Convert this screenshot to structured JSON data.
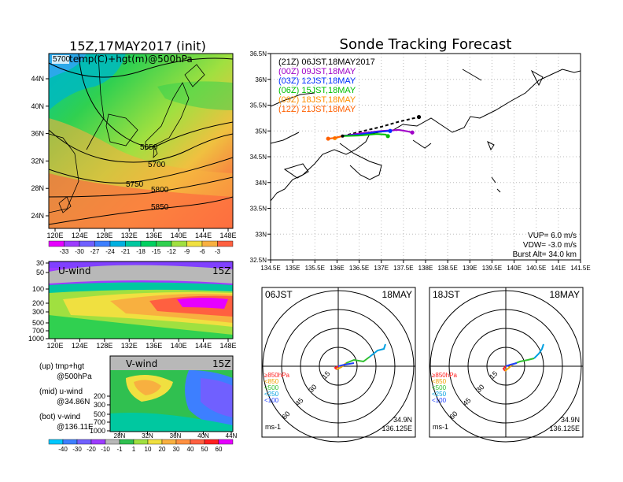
{
  "chart_data": [
    {
      "type": "heatmap",
      "title": "15Z,17MAY2017 (init)",
      "subtitle": "temp(C)+hgt(m)@500hPa",
      "corner_label": "5700",
      "x_ticks": [
        "120E",
        "124E",
        "128E",
        "132E",
        "136E",
        "140E",
        "144E",
        "148E"
      ],
      "y_ticks": [
        "44N",
        "40N",
        "36N",
        "32N",
        "28N",
        "24N"
      ],
      "contours": [
        {
          "label": "5650"
        },
        {
          "label": "5700"
        },
        {
          "label": "5750"
        },
        {
          "label": "5800"
        },
        {
          "label": "5850"
        }
      ],
      "colorbar_labels": [
        "-33",
        "-30",
        "-27",
        "-24",
        "-21",
        "-18",
        "-15",
        "-12",
        "-9",
        "-6",
        "-3"
      ],
      "colorbar_colors": [
        "#e600ff",
        "#9d3cff",
        "#7060ff",
        "#3d7fff",
        "#00b0e0",
        "#00c8a0",
        "#00d060",
        "#30d050",
        "#a0e040",
        "#f0e040",
        "#f8b040",
        "#ff6040"
      ]
    },
    {
      "type": "heatmap",
      "label": "U-wind",
      "time": "15Z",
      "x_ticks": [
        "120E",
        "124E",
        "128E",
        "132E",
        "136E",
        "140E",
        "144E",
        "148E"
      ],
      "y_ticks": [
        "30",
        "50",
        "100",
        "200",
        "300",
        "500",
        "700",
        "1000"
      ]
    },
    {
      "type": "heatmap",
      "label": "V-wind",
      "time": "15Z",
      "x_ticks": [
        "28N",
        "32N",
        "36N",
        "40N",
        "44N"
      ],
      "y_ticks": [
        "200",
        "300",
        "500",
        "700",
        "1000"
      ],
      "colorbar_labels": [
        "-40",
        "-30",
        "-20",
        "-10",
        "-1",
        "1",
        "10",
        "20",
        "30",
        "40",
        "50",
        "60"
      ]
    },
    {
      "type": "line",
      "title": "Sonde Tracking Forecast",
      "x_ticks": [
        "134.5E",
        "135E",
        "135.5E",
        "136E",
        "136.5E",
        "137E",
        "137.5E",
        "138E",
        "138.5E",
        "139E",
        "139.5E",
        "140E",
        "140.5E",
        "141E",
        "141.5E"
      ],
      "y_ticks": [
        "36.5N",
        "36N",
        "35.5N",
        "35N",
        "34.5N",
        "34N",
        "33.5N",
        "33N",
        "32.5N"
      ],
      "xlim": [
        134.5,
        141.5
      ],
      "ylim": [
        32.5,
        36.5
      ],
      "launch": {
        "lon": 136.125,
        "lat": 34.9
      },
      "series": [
        {
          "name": "(21Z)  06JST,18MAY2017",
          "color": "#000000",
          "dash": "4,3",
          "lons": [
            136.125,
            136.5,
            137.0,
            137.4,
            137.7,
            137.85
          ],
          "lats": [
            34.9,
            34.98,
            35.08,
            35.18,
            35.24,
            35.27
          ]
        },
        {
          "name": "(00Z)  09JST,18MAY",
          "color": "#a000c8",
          "dash": "",
          "lons": [
            136.125,
            136.5,
            137.0,
            137.4,
            137.6,
            137.7
          ],
          "lats": [
            34.9,
            34.95,
            35.0,
            35.02,
            34.99,
            34.97
          ]
        },
        {
          "name": "(03Z)  12JST,18MAY",
          "color": "#0030ff",
          "dash": "",
          "lons": [
            136.125,
            136.5,
            136.9,
            137.2
          ],
          "lats": [
            34.9,
            34.93,
            34.98,
            35.0
          ]
        },
        {
          "name": "(06Z)  15JST,18MAY",
          "color": "#00c000",
          "dash": "",
          "lons": [
            136.125,
            136.5,
            136.9,
            137.1,
            137.15
          ],
          "lats": [
            34.9,
            34.91,
            34.94,
            34.93,
            34.9
          ]
        },
        {
          "name": "(09Z)  18JST,18MAY",
          "color": "#ff9000",
          "dash": "",
          "lons": [
            136.125,
            136.0,
            135.95
          ],
          "lats": [
            34.9,
            34.87,
            34.86
          ]
        },
        {
          "name": "(12Z)  21JST,18MAY",
          "color": "#ff6000",
          "dash": "",
          "lons": [
            136.125,
            135.9,
            135.8
          ],
          "lats": [
            34.9,
            34.86,
            34.85
          ]
        }
      ],
      "notes": [
        "VUP=  6.0  m/s",
        "VDW=  -3.0  m/s",
        "Burst Alt=  34.0  km"
      ]
    },
    {
      "type": "scatter",
      "panel": "hodograph",
      "left_label": "06JST",
      "right_label": "18MAY",
      "ring_labels": [
        "15",
        "30",
        "45",
        "60"
      ],
      "legend": [
        "≥850hPa",
        "<850",
        "<500",
        "<250",
        "<100"
      ],
      "legend_colors": [
        "#ff2020",
        "#f0a000",
        "#30c030",
        "#00a0e0",
        "#2040ff"
      ],
      "unit": "ms-1",
      "position": [
        "34.9N",
        "136.125E"
      ]
    },
    {
      "type": "scatter",
      "panel": "hodograph",
      "left_label": "18JST",
      "right_label": "18MAY",
      "ring_labels": [
        "15",
        "30",
        "45",
        "60"
      ],
      "legend": [
        "≥850hPa",
        "<850",
        "<500",
        "<250",
        "<100"
      ],
      "legend_colors": [
        "#ff2020",
        "#f0a000",
        "#30c030",
        "#00a0e0",
        "#2040ff"
      ],
      "unit": "ms-1",
      "position": [
        "34.9N",
        "136.125E"
      ]
    }
  ],
  "captions": {
    "up": "(up) tmp+hgt",
    "up2": "@500hPa",
    "mid": "(mid) u-wind",
    "mid2": "@34.86N",
    "bot": "(bot) v-wind",
    "bot2": "@136.11E"
  }
}
